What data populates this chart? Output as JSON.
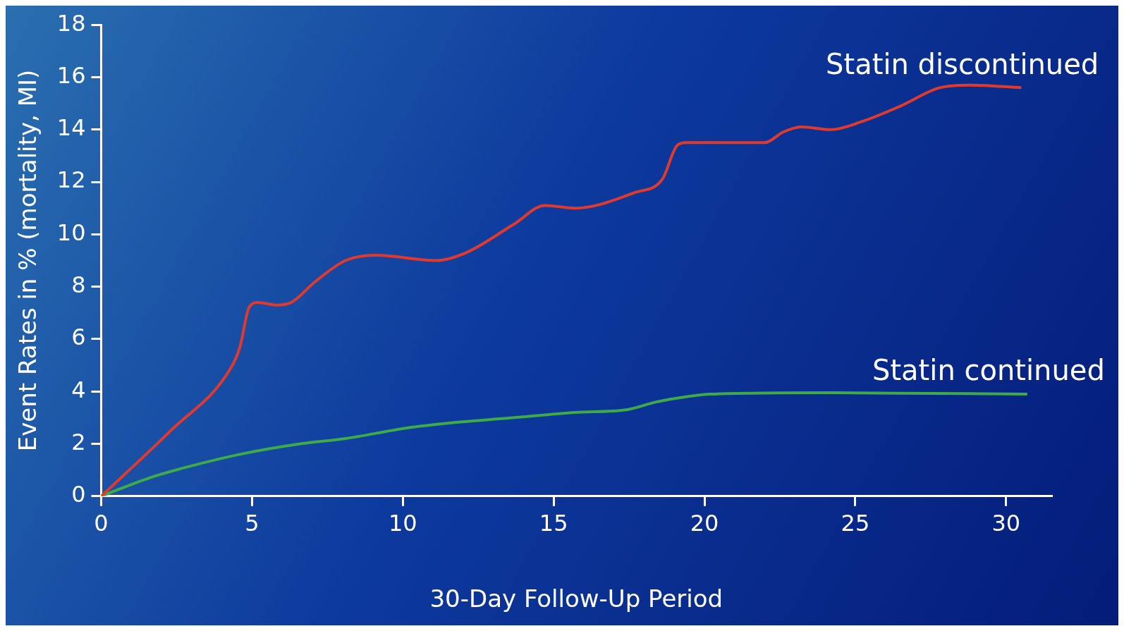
{
  "chart_data": {
    "type": "line",
    "xlabel": "30-Day Follow-Up Period",
    "ylabel": "Event Rates in % (mortality, MI)",
    "xlim": [
      0,
      31.5
    ],
    "xticks": [
      0,
      5,
      10,
      15,
      20,
      25,
      30
    ],
    "ylim": [
      0,
      18
    ],
    "yticks": [
      0,
      2,
      4,
      6,
      8,
      10,
      12,
      14,
      16,
      18
    ],
    "grid": false,
    "legend": false,
    "marker": "none",
    "series": [
      {
        "name": "Statin discontinued",
        "color": "#e03a2e",
        "x": [
          0,
          2.3,
          4.3,
          4.6,
          4.9,
          5.2,
          5.8,
          6.3,
          7.1,
          8.1,
          9.1,
          11.1,
          12.1,
          13.7,
          14.7,
          15.7,
          17.7,
          18.6,
          19.1,
          19.4,
          22,
          22.6,
          23.2,
          24.2,
          25.2,
          26.5,
          27.8,
          28.8,
          30.5
        ],
        "values": [
          0,
          2.5,
          4.9,
          5.7,
          7.2,
          7.4,
          7.3,
          7.4,
          8.2,
          9.0,
          9.2,
          9.0,
          9.3,
          10.4,
          11.1,
          11.0,
          11.6,
          12.1,
          13.4,
          13.5,
          13.5,
          13.9,
          14.1,
          14.0,
          14.3,
          14.9,
          15.6,
          15.7,
          15.6
        ]
      },
      {
        "name": "Statin continued",
        "color": "#3faa4a",
        "x": [
          0,
          1.6,
          2.8,
          4.6,
          6.6,
          8.1,
          10.1,
          11.6,
          13.7,
          15.7,
          17.4,
          18.4,
          19.4,
          20.2,
          24.2,
          30.7
        ],
        "values": [
          0,
          0.7,
          1.1,
          1.6,
          2.0,
          2.2,
          2.6,
          2.8,
          3.0,
          3.2,
          3.3,
          3.6,
          3.8,
          3.9,
          3.95,
          3.9
        ]
      }
    ]
  }
}
